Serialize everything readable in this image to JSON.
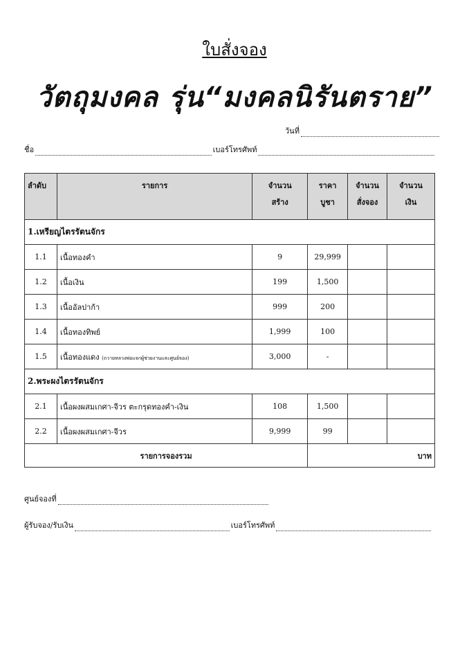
{
  "title": "ใบสั่งจอง",
  "subtitle": "วัตถุมงคล รุ่น“มงคลนิรันตราย”",
  "fields": {
    "date": "วันที่",
    "name": "ชื่อ",
    "phone": "เบอร์โทรศัพท์"
  },
  "table": {
    "headers": [
      {
        "l1": "ลำดับ",
        "l2": ""
      },
      {
        "l1": "รายการ",
        "l2": ""
      },
      {
        "l1": "จำนวน",
        "l2": "สร้าง"
      },
      {
        "l1": "ราคา",
        "l2": "บูชา"
      },
      {
        "l1": "จำนวน",
        "l2": "สั่งจอง"
      },
      {
        "l1": "จำนวน",
        "l2": "เงิน"
      }
    ],
    "sections": [
      {
        "title": "1.เหรียญไตรรัตนจักร",
        "rows": [
          {
            "no": "1.1",
            "item": "เนื้อทองคำ",
            "note": "",
            "qty": "9",
            "price": "29,999"
          },
          {
            "no": "1.2",
            "item": "เนื้อเงิน",
            "note": "",
            "qty": "199",
            "price": "1,500"
          },
          {
            "no": "1.3",
            "item": "เนื้ออัลปาก้า",
            "note": "",
            "qty": "999",
            "price": "200"
          },
          {
            "no": "1.4",
            "item": "เนื้อทองทิพย์",
            "note": "",
            "qty": "1,999",
            "price": "100"
          },
          {
            "no": "1.5",
            "item": "เนื้อทองแดง",
            "note": "(ถวายหลวงพ่อแจกผู้ช่วยงานและศูนย์จอง)",
            "qty": "3,000",
            "price": "-"
          }
        ]
      },
      {
        "title": "2.พระผงไตรรัตนจักร",
        "rows": [
          {
            "no": "2.1",
            "item": "เนื้อผงผสมเกศา-จีวร ตะกรุดทองคำ-เงิน",
            "note": "",
            "qty": "108",
            "price": "1,500"
          },
          {
            "no": "2.2",
            "item": "เนื้อผงผสมเกศา-จีวร",
            "note": "",
            "qty": "9,999",
            "price": "99"
          }
        ]
      }
    ],
    "total_label": "รายการจองรวม",
    "currency": "บาท"
  },
  "footer": {
    "center": "ศูนย์จองที่",
    "receiver": "ผู้รับจอง/รับเงิน",
    "phone": "เบอร์โทรศัพท์"
  }
}
